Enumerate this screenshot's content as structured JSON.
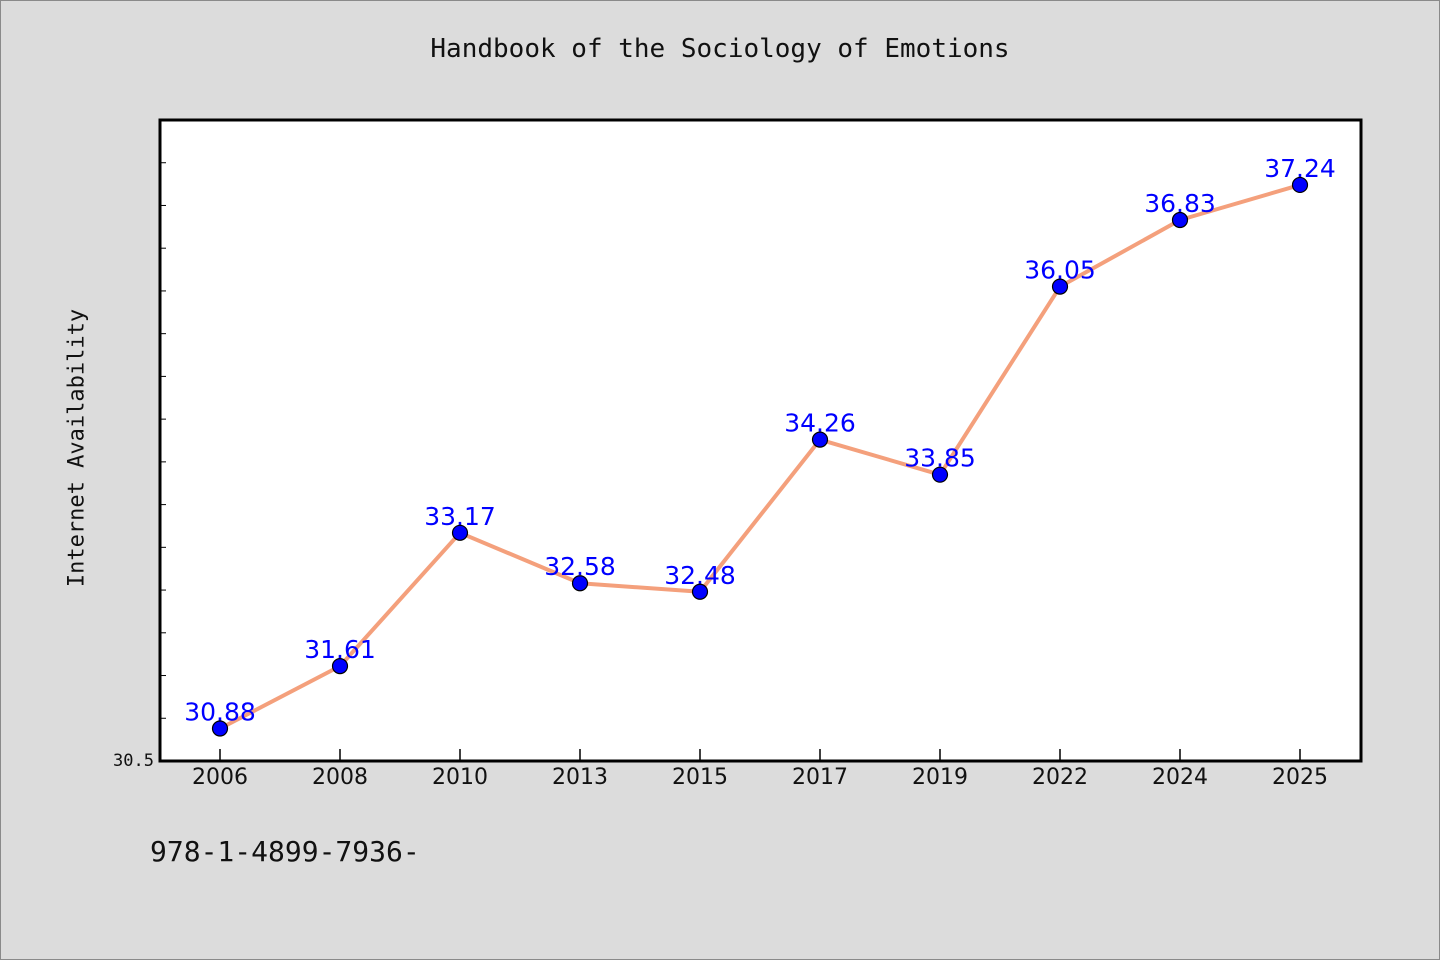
{
  "chart_data": {
    "type": "line",
    "title": "Handbook of the Sociology of Emotions",
    "xlabel": "",
    "ylabel": "Internet Availability",
    "categories": [
      "2006",
      "2008",
      "2010",
      "2013",
      "2015",
      "2017",
      "2019",
      "2022",
      "2024",
      "2025"
    ],
    "series": [
      {
        "values": [
          30.88,
          31.61,
          33.17,
          32.58,
          32.48,
          34.26,
          33.85,
          36.05,
          36.83,
          37.24
        ],
        "value_labels": [
          "30.88",
          "31.61",
          "33.17",
          "32.58",
          "32.48",
          "34.26",
          "33.85",
          "36.05",
          "36.83",
          "37.24"
        ],
        "line_color": "#f4a07c",
        "marker_color": "#0000ff"
      }
    ],
    "y_tick_labels": [
      "30.5"
    ],
    "ylim": [
      30.5,
      38.0
    ],
    "grid": false,
    "legend": "none",
    "background": "#dcdcdc",
    "plot_background": "#ffffff"
  },
  "footnote": "978-1-4899-7936-"
}
